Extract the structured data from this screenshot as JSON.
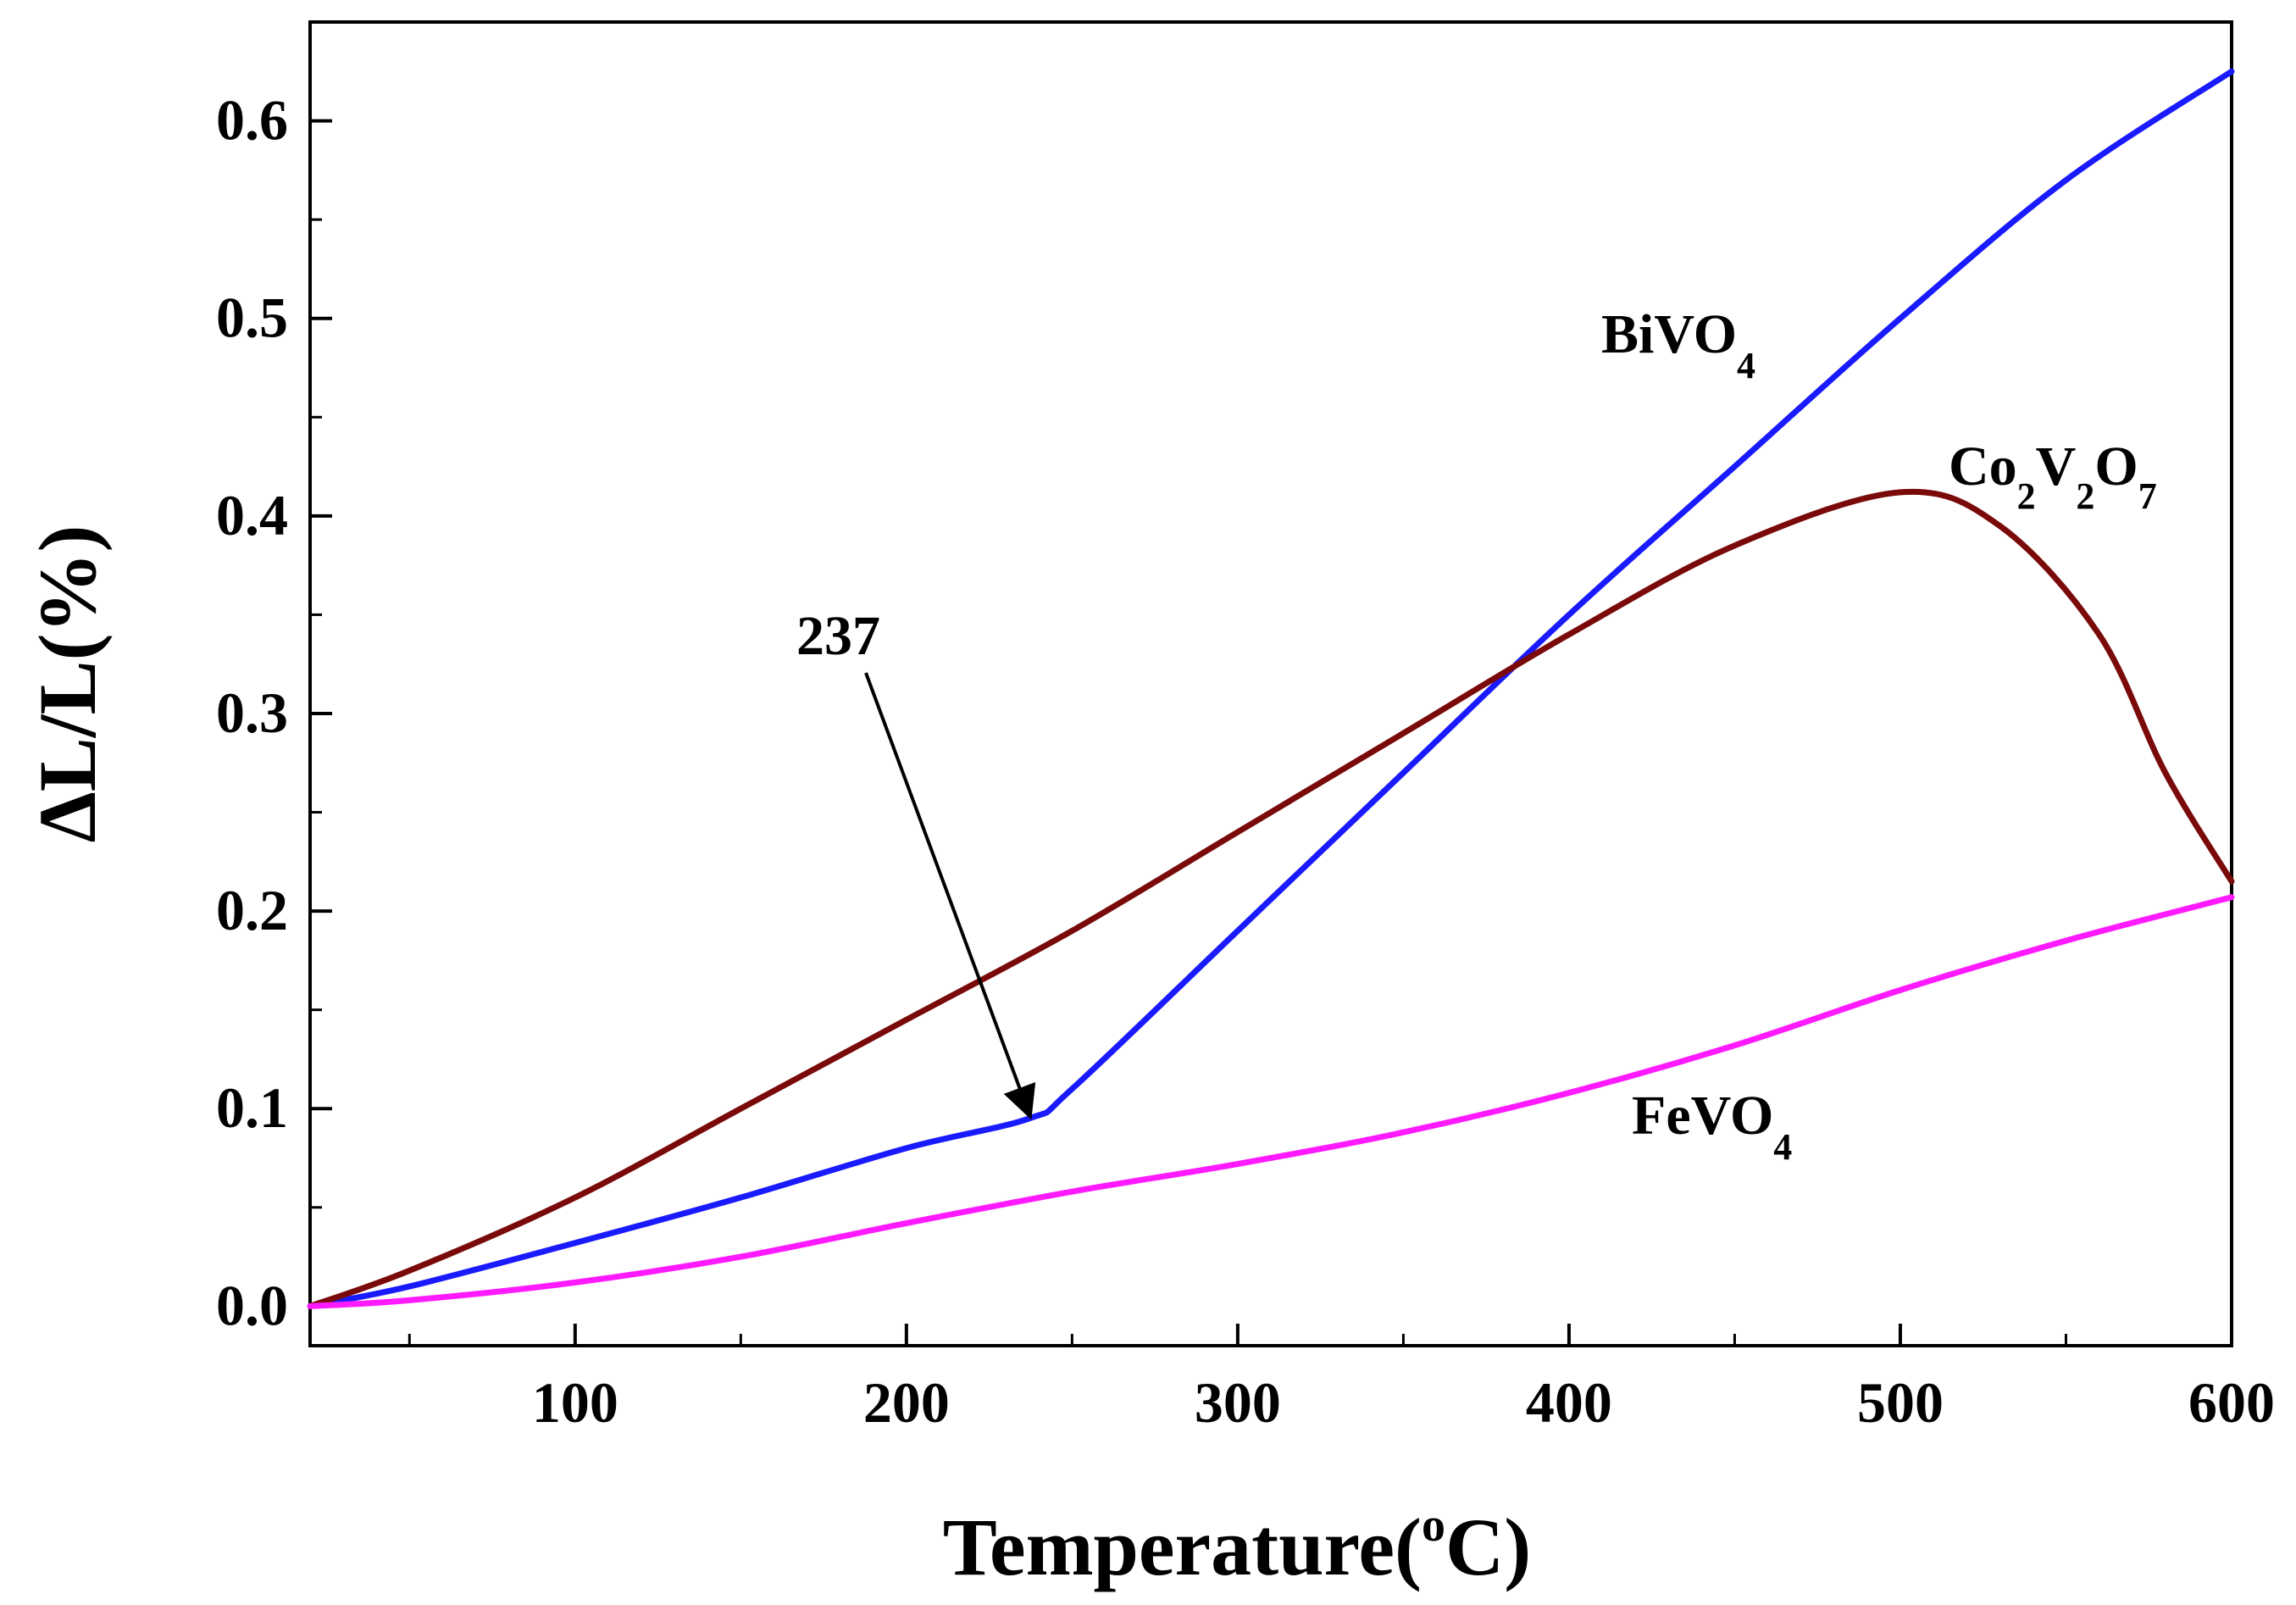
{
  "chart_data": {
    "type": "line",
    "title": "",
    "xlabel": "Temperature(",
    "xlabel_sup": "o",
    "xlabel_tail": "C)",
    "ylabel": "ΔL/L(%)",
    "xlim": [
      20,
      600
    ],
    "ylim": [
      -0.02,
      0.65
    ],
    "x_ticks": [
      100,
      200,
      300,
      400,
      500,
      600
    ],
    "x_tick_labels": [
      "100",
      "200",
      "300",
      "400",
      "500",
      "600"
    ],
    "y_ticks": [
      0.0,
      0.1,
      0.2,
      0.3,
      0.4,
      0.5,
      0.6
    ],
    "y_tick_labels": [
      "0.0",
      "0.1",
      "0.2",
      "0.3",
      "0.4",
      "0.5",
      "0.6"
    ],
    "series": [
      {
        "name": "BiVO4",
        "color": "#1a1aff",
        "label": {
          "main": "BiVO",
          "sub": "4"
        },
        "x": [
          20,
          50,
          100,
          150,
          200,
          237,
          250,
          300,
          350,
          400,
          450,
          500,
          550,
          600
        ],
        "y": [
          0.0,
          0.01,
          0.032,
          0.055,
          0.08,
          0.095,
          0.11,
          0.19,
          0.27,
          0.35,
          0.425,
          0.5,
          0.57,
          0.625
        ]
      },
      {
        "name": "Co2V2O7",
        "color": "#7a0a0a",
        "label": {
          "a": "Co",
          "a_sub": "2",
          "b": "V",
          "b_sub": "2",
          "c": "O",
          "c_sub": "7"
        },
        "x": [
          20,
          50,
          100,
          150,
          200,
          250,
          300,
          350,
          400,
          450,
          500,
          530,
          560,
          580,
          600
        ],
        "y": [
          0.0,
          0.018,
          0.055,
          0.1,
          0.145,
          0.19,
          0.24,
          0.29,
          0.34,
          0.385,
          0.412,
          0.395,
          0.34,
          0.27,
          0.215
        ]
      },
      {
        "name": "FeVO4",
        "color": "#ff1aff",
        "label": {
          "main": "FeVO",
          "sub": "4"
        },
        "x": [
          20,
          50,
          100,
          150,
          200,
          250,
          300,
          350,
          400,
          450,
          500,
          550,
          600
        ],
        "y": [
          0.0,
          0.003,
          0.012,
          0.025,
          0.042,
          0.058,
          0.072,
          0.088,
          0.108,
          0.132,
          0.16,
          0.185,
          0.207
        ]
      }
    ],
    "annotations": [
      {
        "text": "237",
        "points_to": {
          "x": 237,
          "y": 0.095
        }
      }
    ]
  }
}
